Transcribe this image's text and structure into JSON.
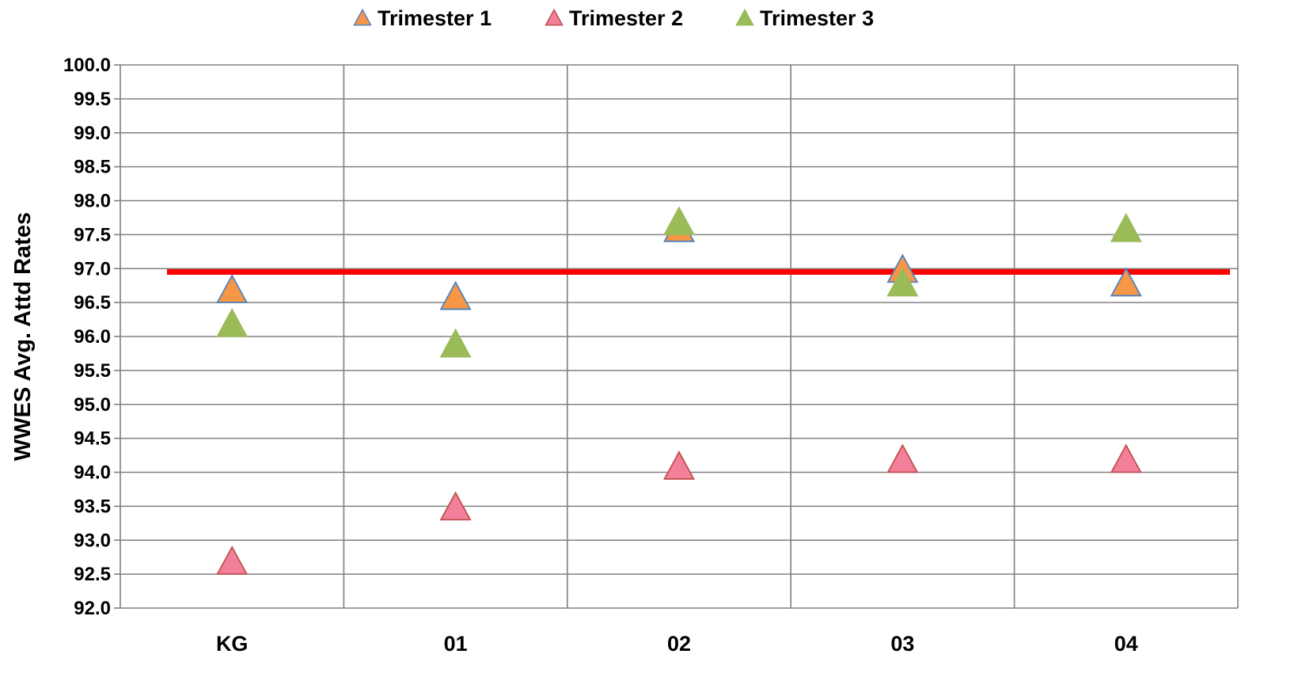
{
  "chart_data": {
    "type": "scatter",
    "categories": [
      "KG",
      "01",
      "02",
      "03",
      "04"
    ],
    "series": [
      {
        "name": "Trimester 1",
        "values": [
          96.7,
          96.6,
          97.6,
          97.0,
          96.8
        ],
        "fill": "#F79646",
        "stroke": "#4F81BD"
      },
      {
        "name": "Trimester 2",
        "values": [
          92.7,
          93.5,
          94.1,
          94.2,
          94.2
        ],
        "fill": "#F2809A",
        "stroke": "#C0504D"
      },
      {
        "name": "Trimester 3",
        "values": [
          96.2,
          95.9,
          97.7,
          96.8,
          97.6
        ],
        "fill": "#9BBB59",
        "stroke": "#9BBB59"
      }
    ],
    "reference_line": {
      "value": 96.95,
      "color": "#FF0000"
    },
    "ylabel": "WWES Avg. Attd Rates",
    "xlabel": "",
    "ylim": [
      92.0,
      100.0
    ],
    "ytick_step": 0.5,
    "y_tick_labels": [
      "92.0",
      "92.5",
      "93.0",
      "93.5",
      "94.0",
      "94.5",
      "95.0",
      "95.5",
      "96.0",
      "96.5",
      "97.0",
      "97.5",
      "98.0",
      "98.5",
      "99.0",
      "99.5",
      "100.0"
    ],
    "grid": true,
    "legend_position": "top",
    "marker": "triangle"
  }
}
